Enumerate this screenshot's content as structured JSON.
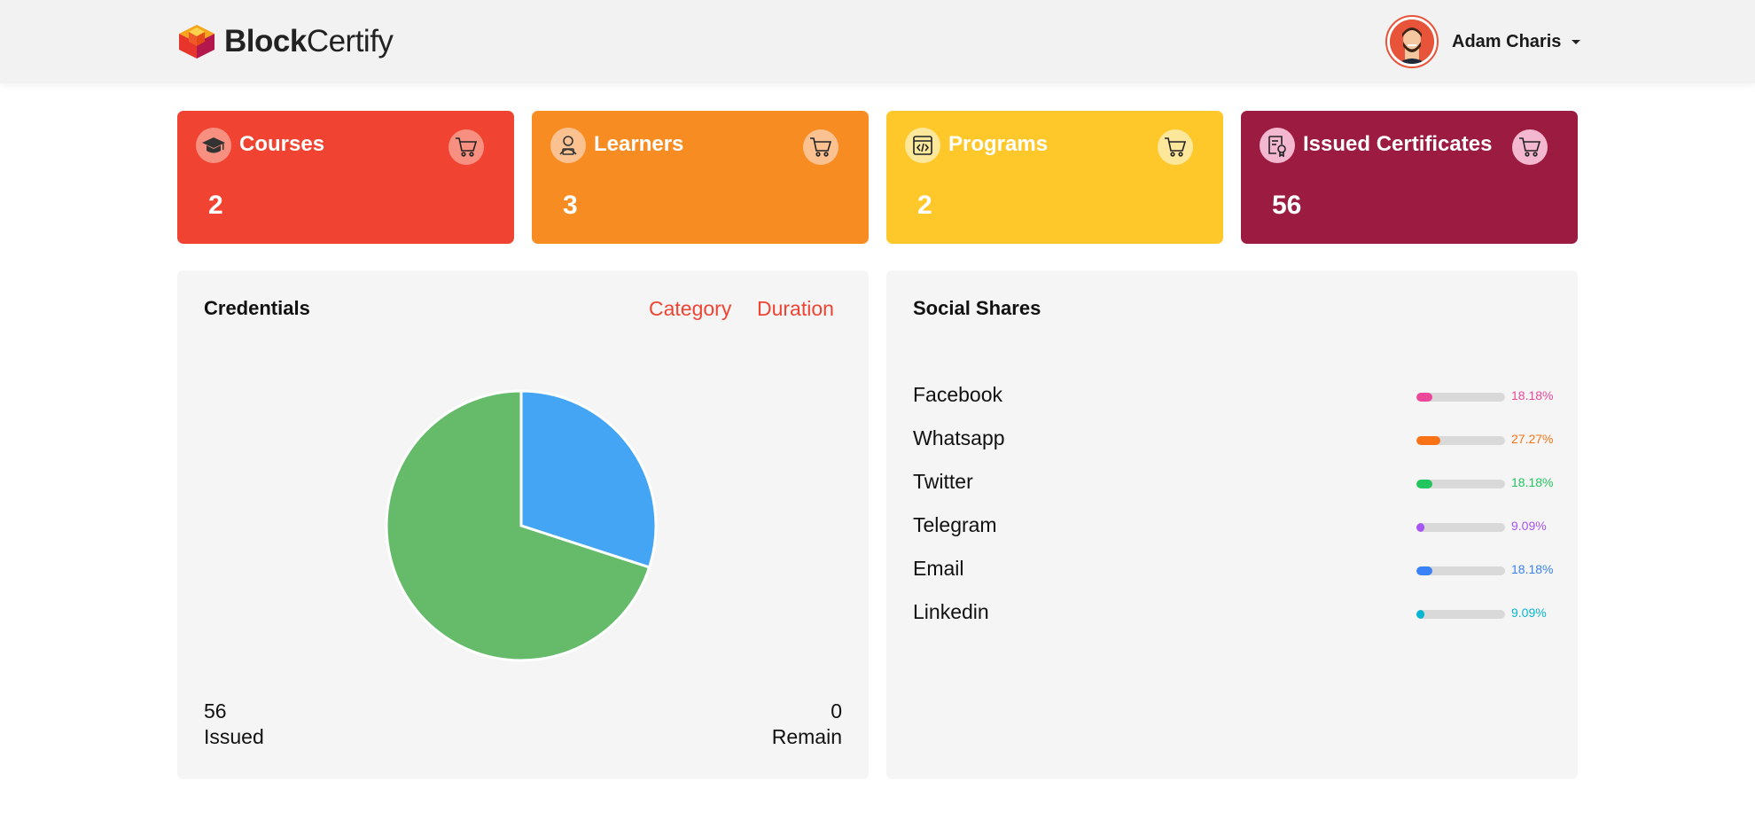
{
  "header": {
    "logo_bold": "Block",
    "logo_light": "Certify",
    "user_name": "Adam Charis"
  },
  "stats": [
    {
      "title": "Courses",
      "value": "2",
      "color": "#f04331",
      "icon": "graduation-cap-icon"
    },
    {
      "title": "Learners",
      "value": "3",
      "color": "#f78d22",
      "icon": "learner-icon"
    },
    {
      "title": "Programs",
      "value": "2",
      "color": "#ffc82a",
      "icon": "code-window-icon"
    },
    {
      "title": "Issued Certificates",
      "value": "56",
      "color": "#9c1b40",
      "icon": "certificate-icon"
    }
  ],
  "credentials": {
    "title": "Credentials",
    "tabs": [
      "Category",
      "Duration"
    ],
    "issued_value": "56",
    "issued_label": "Issued",
    "remain_value": "0",
    "remain_label": "Remain"
  },
  "chart_data": {
    "type": "pie",
    "slices": [
      {
        "value": 30,
        "color": "#45a5f5"
      },
      {
        "value": 70,
        "color": "#66bb6a"
      }
    ]
  },
  "social": {
    "title": "Social Shares",
    "items": [
      {
        "label": "Facebook",
        "percent": "18.18%",
        "value": 18.18,
        "color": "#ec4899"
      },
      {
        "label": "Whatsapp",
        "percent": "27.27%",
        "value": 27.27,
        "color": "#f97316"
      },
      {
        "label": "Twitter",
        "percent": "18.18%",
        "value": 18.18,
        "color": "#22c55e"
      },
      {
        "label": "Telegram",
        "percent": "9.09%",
        "value": 9.09,
        "color": "#a855f7"
      },
      {
        "label": "Email",
        "percent": "18.18%",
        "value": 18.18,
        "color": "#3b82f6"
      },
      {
        "label": "Linkedin",
        "percent": "9.09%",
        "value": 9.09,
        "color": "#06b6d4"
      }
    ]
  }
}
